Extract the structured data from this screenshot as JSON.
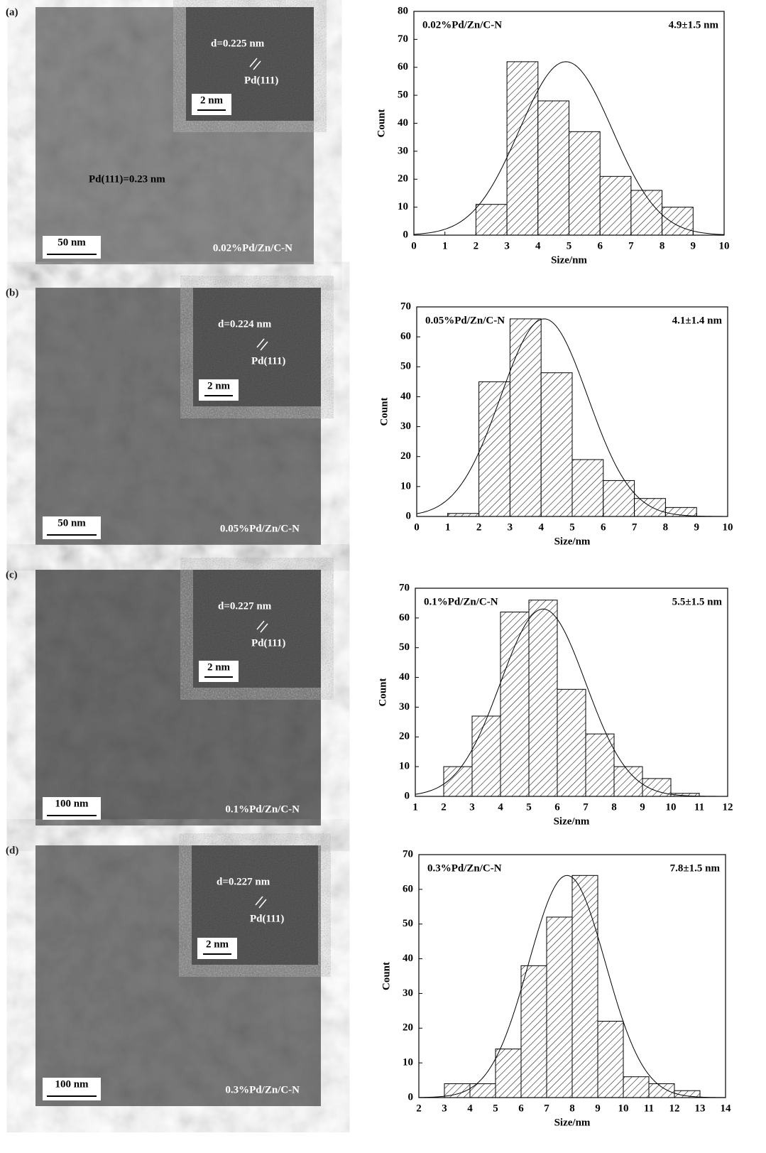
{
  "chart_data": [
    {
      "type": "histogram",
      "title": "0.02%Pd/Zn/C-N",
      "x_label": "Size/nm",
      "y_label": "Count",
      "bins": [
        2,
        3,
        4,
        5,
        6,
        7,
        8,
        9
      ],
      "values": [
        11,
        62,
        48,
        37,
        21,
        16,
        10
      ],
      "xlim": [
        0,
        10
      ],
      "xticks": [
        0,
        1,
        2,
        3,
        4,
        5,
        6,
        7,
        8,
        9,
        10
      ],
      "ylim": [
        0,
        80
      ],
      "yticks": [
        0,
        10,
        20,
        30,
        40,
        50,
        60,
        70,
        80
      ],
      "fit": {
        "mean": 4.9,
        "sd": 1.5,
        "peak": 62,
        "label": "4.9±1.5 nm"
      }
    },
    {
      "type": "histogram",
      "title": "0.05%Pd/Zn/C-N",
      "x_label": "Size/nm",
      "y_label": "Count",
      "bins": [
        1,
        2,
        3,
        4,
        5,
        6,
        7,
        8,
        9
      ],
      "values": [
        1,
        45,
        66,
        48,
        19,
        12,
        6,
        3
      ],
      "xlim": [
        0,
        10
      ],
      "xticks": [
        0,
        1,
        2,
        3,
        4,
        5,
        6,
        7,
        8,
        9,
        10
      ],
      "ylim": [
        0,
        70
      ],
      "yticks": [
        0,
        10,
        20,
        30,
        40,
        50,
        60,
        70
      ],
      "fit": {
        "mean": 4.1,
        "sd": 1.4,
        "peak": 66,
        "label": "4.1±1.4 nm"
      }
    },
    {
      "type": "histogram",
      "title": "0.1%Pd/Zn/C-N",
      "x_label": "Size/nm",
      "y_label": "Count",
      "bins": [
        2,
        3,
        4,
        5,
        6,
        7,
        8,
        9,
        10,
        11
      ],
      "values": [
        10,
        27,
        62,
        66,
        36,
        21,
        10,
        6,
        1
      ],
      "xlim": [
        1,
        12
      ],
      "xticks": [
        1,
        2,
        3,
        4,
        5,
        6,
        7,
        8,
        9,
        10,
        11,
        12
      ],
      "ylim": [
        0,
        70
      ],
      "yticks": [
        0,
        10,
        20,
        30,
        40,
        50,
        60,
        70
      ],
      "fit": {
        "mean": 5.5,
        "sd": 1.5,
        "peak": 63,
        "label": "5.5±1.5 nm"
      }
    },
    {
      "type": "histogram",
      "title": "0.3%Pd/Zn/C-N",
      "x_label": "Size/nm",
      "y_label": "Count",
      "bins": [
        3,
        4,
        5,
        6,
        7,
        8,
        9,
        10,
        11,
        12,
        13
      ],
      "values": [
        4,
        4,
        14,
        38,
        52,
        64,
        22,
        6,
        4,
        2
      ],
      "xlim": [
        2,
        14
      ],
      "xticks": [
        2,
        3,
        4,
        5,
        6,
        7,
        8,
        9,
        10,
        11,
        12,
        13,
        14
      ],
      "ylim": [
        0,
        70
      ],
      "yticks": [
        0,
        10,
        20,
        30,
        40,
        50,
        60,
        70
      ],
      "fit": {
        "mean": 7.8,
        "sd": 1.5,
        "peak": 64,
        "label": "7.8±1.5 nm"
      }
    }
  ],
  "images": [
    {
      "panel": "(a)",
      "scale_bar": "50 nm",
      "inset_scale_bar": "2 nm",
      "d_spacing": "d=0.225 nm",
      "plane": "Pd(111)",
      "sample": "0.02%Pd/Zn/C-N",
      "annotation": "Pd(111)=0.23 nm"
    },
    {
      "panel": "(b)",
      "scale_bar": "50 nm",
      "inset_scale_bar": "2 nm",
      "d_spacing": "d=0.224 nm",
      "plane": "Pd(111)",
      "sample": "0.05%Pd/Zn/C-N"
    },
    {
      "panel": "(c)",
      "scale_bar": "100 nm",
      "inset_scale_bar": "2 nm",
      "d_spacing": "d=0.227 nm",
      "plane": "Pd(111)",
      "sample": "0.1%Pd/Zn/C-N"
    },
    {
      "panel": "(d)",
      "scale_bar": "100 nm",
      "inset_scale_bar": "2 nm",
      "d_spacing": "d=0.227 nm",
      "plane": "Pd(111)",
      "sample": "0.3%Pd/Zn/C-N"
    }
  ]
}
